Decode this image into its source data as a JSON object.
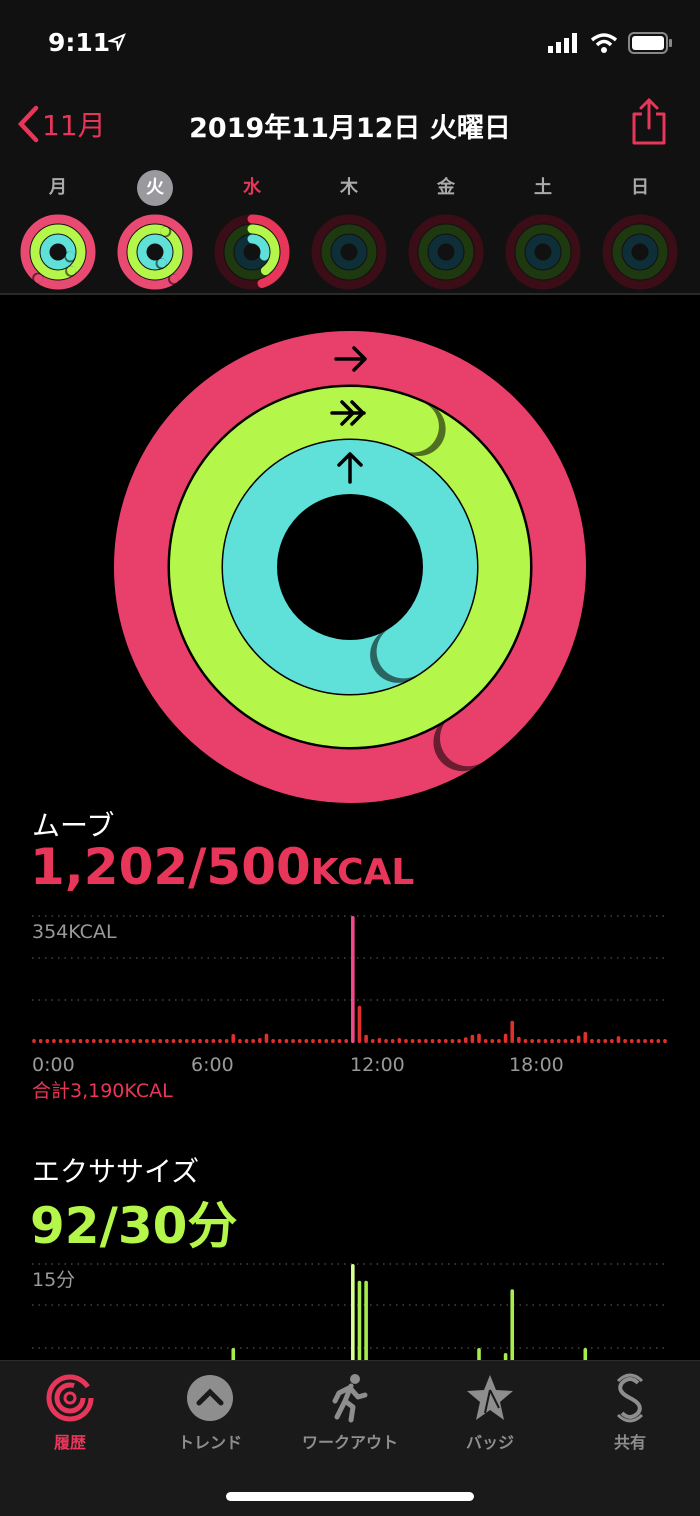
{
  "status": {
    "time": "9:11"
  },
  "header": {
    "back_label": "11月",
    "title": "2019年11月12日 火曜日"
  },
  "week": [
    {
      "label": "月",
      "move": 1.6,
      "exercise": 1.4,
      "stand": 1.3,
      "state": "past"
    },
    {
      "label": "火",
      "move": 2.4,
      "exercise": 3.07,
      "stand": 1.41,
      "state": "selected"
    },
    {
      "label": "水",
      "move": 0.45,
      "exercise": 0.4,
      "stand": 0.3,
      "state": "today"
    },
    {
      "label": "木",
      "move": 0,
      "exercise": 0,
      "stand": 0,
      "state": "future"
    },
    {
      "label": "金",
      "move": 0,
      "exercise": 0,
      "stand": 0,
      "state": "future"
    },
    {
      "label": "土",
      "move": 0,
      "exercise": 0,
      "stand": 0,
      "state": "future"
    },
    {
      "label": "日",
      "move": 0,
      "exercise": 0,
      "stand": 0,
      "state": "future"
    }
  ],
  "rings": {
    "move_progress": 2.404,
    "exercise_progress": 3.067,
    "stand_progress": 1.41
  },
  "colors": {
    "move": "#e8365a",
    "move_end": "#f0468a",
    "exercise": "#b4f64a",
    "stand": "#5fe0d8",
    "accent": "#e8365a"
  },
  "move": {
    "title": "ムーブ",
    "value": "1,202/500",
    "unit": "KCAL",
    "total": "合計3,190KCAL"
  },
  "exercise": {
    "title": "エクササイズ",
    "value": "92/30分"
  },
  "chart_data": [
    {
      "type": "bar",
      "name": "move",
      "ymax_label": "354KCAL",
      "ylim": [
        0,
        354
      ],
      "x_ticks": [
        "0:00",
        "6:00",
        "12:00",
        "18:00"
      ],
      "interval": "15min",
      "values": [
        3,
        3,
        3,
        3,
        3,
        3,
        3,
        3,
        3,
        3,
        3,
        3,
        3,
        3,
        3,
        3,
        3,
        3,
        3,
        3,
        3,
        3,
        3,
        3,
        3,
        3,
        3,
        3,
        3,
        3,
        25,
        11,
        3,
        3,
        14,
        26,
        3,
        3,
        3,
        3,
        3,
        3,
        3,
        3,
        3,
        3,
        3,
        3,
        354,
        104,
        23,
        3,
        14,
        3,
        3,
        14,
        3,
        3,
        3,
        3,
        11,
        3,
        3,
        3,
        3,
        16,
        23,
        26,
        3,
        3,
        3,
        26,
        62,
        17,
        3,
        3,
        3,
        3,
        3,
        3,
        3,
        3,
        21,
        31,
        3,
        3,
        3,
        3,
        19,
        3,
        3,
        3,
        3,
        3,
        3,
        3
      ]
    },
    {
      "type": "bar",
      "name": "exercise",
      "ymax_label": "15分",
      "ylim": [
        0,
        15
      ],
      "interval": "15min",
      "values": [
        0,
        0,
        0,
        0,
        0,
        0,
        0,
        0,
        0,
        0,
        0,
        0,
        0,
        0,
        0,
        0,
        0,
        0,
        0,
        0,
        0,
        0,
        0,
        0,
        0,
        0,
        0,
        0,
        0,
        0,
        5,
        0,
        0,
        0,
        0,
        0,
        0,
        0,
        0,
        0,
        0,
        0,
        0,
        0,
        0,
        0,
        0,
        0,
        15,
        13,
        13,
        0,
        0,
        0,
        0,
        0,
        0,
        0,
        0,
        0,
        0,
        0,
        0,
        0,
        0,
        0,
        0,
        5,
        0,
        0,
        0,
        4.4,
        12,
        0,
        0,
        0,
        0,
        0,
        0,
        0,
        0,
        0,
        0,
        5,
        0,
        0,
        0,
        0,
        0,
        0,
        0,
        0,
        0,
        0,
        0,
        0
      ]
    }
  ],
  "tabs": [
    {
      "label": "履歴",
      "icon": "history-rings-icon",
      "active": true
    },
    {
      "label": "トレンド",
      "icon": "trend-chevron-icon"
    },
    {
      "label": "ワークアウト",
      "icon": "running-figure-icon"
    },
    {
      "label": "バッジ",
      "icon": "badge-star-icon"
    },
    {
      "label": "共有",
      "icon": "sharing-icon"
    }
  ]
}
